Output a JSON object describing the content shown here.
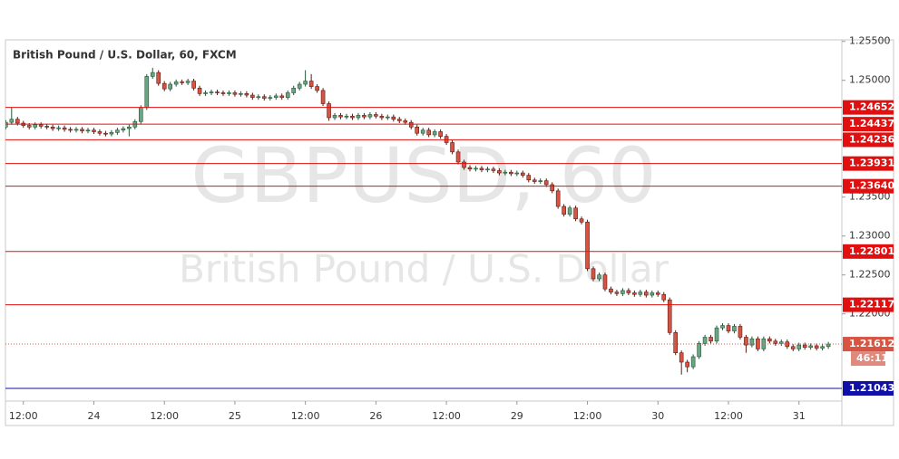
{
  "chart_data": {
    "type": "candlestick",
    "title": "British Pound / U.S. Dollar, 60, FXCM",
    "watermark": "GBPUSD, 60",
    "watermark_subtitle": "British Pound / U.S. Dollar",
    "ylim": [
      1.2088,
      1.2552
    ],
    "yticks": [
      {
        "value": 1.255,
        "label": "1.25500"
      },
      {
        "value": 1.25,
        "label": "1.25000"
      },
      {
        "value": 1.235,
        "label": "1.23500"
      },
      {
        "value": 1.23,
        "label": "1.23000"
      },
      {
        "value": 1.225,
        "label": "1.22500"
      },
      {
        "value": 1.22,
        "label": "1.22000"
      }
    ],
    "xlim": [
      -0.05,
      142.3
    ],
    "xticks": [
      {
        "value": 3,
        "label": "12:00"
      },
      {
        "value": 15,
        "label": "24"
      },
      {
        "value": 27,
        "label": "12:00"
      },
      {
        "value": 39,
        "label": "25"
      },
      {
        "value": 51,
        "label": "12:00"
      },
      {
        "value": 63,
        "label": "26"
      },
      {
        "value": 75,
        "label": "12:00"
      },
      {
        "value": 87,
        "label": "29"
      },
      {
        "value": 99,
        "label": "12:00"
      },
      {
        "value": 111,
        "label": "30"
      },
      {
        "value": 123,
        "label": "12:00"
      },
      {
        "value": 135,
        "label": "31"
      }
    ],
    "up_color": "#6ba583",
    "down_color": "#d75442",
    "levels": [
      {
        "value": 1.24652,
        "color": "#e01010"
      },
      {
        "value": 1.24437,
        "color": "#e01010"
      },
      {
        "value": 1.24236,
        "color": "#e01010"
      },
      {
        "value": 1.23931,
        "color": "#e01010"
      },
      {
        "value": 1.2364,
        "label": "1.23640",
        "color": "#e01010"
      },
      {
        "value": 1.22801,
        "color": "#e01010"
      },
      {
        "value": 1.22117,
        "color": "#e01010"
      },
      {
        "value": 1.21043,
        "color": "#1010a8"
      }
    ],
    "last_price": 1.21612,
    "countdown": "46:11",
    "ohlc": [
      [
        1.244,
        1.2449,
        1.2437,
        1.2446
      ],
      [
        1.2446,
        1.2465,
        1.2443,
        1.245
      ],
      [
        1.245,
        1.2453,
        1.2442,
        1.2445
      ],
      [
        1.2445,
        1.2448,
        1.2439,
        1.2442
      ],
      [
        1.2442,
        1.2445,
        1.2437,
        1.244
      ],
      [
        1.244,
        1.2446,
        1.2437,
        1.2443
      ],
      [
        1.2443,
        1.2446,
        1.2438,
        1.2441
      ],
      [
        1.2441,
        1.2444,
        1.2437,
        1.244
      ],
      [
        1.244,
        1.2443,
        1.2435,
        1.2438
      ],
      [
        1.2438,
        1.2442,
        1.2435,
        1.2439
      ],
      [
        1.2439,
        1.2442,
        1.2434,
        1.2437
      ],
      [
        1.2437,
        1.244,
        1.2433,
        1.2436
      ],
      [
        1.2436,
        1.244,
        1.2433,
        1.2437
      ],
      [
        1.2437,
        1.244,
        1.2432,
        1.2435
      ],
      [
        1.2435,
        1.2439,
        1.2432,
        1.2436
      ],
      [
        1.2436,
        1.2439,
        1.2431,
        1.2434
      ],
      [
        1.2434,
        1.2437,
        1.2429,
        1.2432
      ],
      [
        1.2432,
        1.2435,
        1.2428,
        1.2431
      ],
      [
        1.2431,
        1.2436,
        1.2428,
        1.2433
      ],
      [
        1.2433,
        1.2439,
        1.243,
        1.2436
      ],
      [
        1.2436,
        1.2441,
        1.2433,
        1.2438
      ],
      [
        1.2438,
        1.2443,
        1.2428,
        1.244
      ],
      [
        1.244,
        1.245,
        1.2437,
        1.2447
      ],
      [
        1.2447,
        1.2468,
        1.2444,
        1.2465
      ],
      [
        1.2465,
        1.2508,
        1.2462,
        1.2505
      ],
      [
        1.2505,
        1.2516,
        1.2502,
        1.251
      ],
      [
        1.251,
        1.2513,
        1.2493,
        1.2496
      ],
      [
        1.2496,
        1.2499,
        1.2486,
        1.2489
      ],
      [
        1.2489,
        1.2498,
        1.2486,
        1.2495
      ],
      [
        1.2495,
        1.2501,
        1.2492,
        1.2498
      ],
      [
        1.2498,
        1.2501,
        1.2494,
        1.2497
      ],
      [
        1.2497,
        1.2502,
        1.2494,
        1.2499
      ],
      [
        1.2499,
        1.2502,
        1.2487,
        1.249
      ],
      [
        1.249,
        1.2493,
        1.248,
        1.2483
      ],
      [
        1.2483,
        1.2487,
        1.248,
        1.2484
      ],
      [
        1.2484,
        1.2488,
        1.2481,
        1.2485
      ],
      [
        1.2485,
        1.2488,
        1.2481,
        1.2484
      ],
      [
        1.2484,
        1.2487,
        1.248,
        1.2483
      ],
      [
        1.2483,
        1.2487,
        1.248,
        1.2484
      ],
      [
        1.2484,
        1.2487,
        1.2479,
        1.2482
      ],
      [
        1.2482,
        1.2486,
        1.2479,
        1.2483
      ],
      [
        1.2483,
        1.2486,
        1.2478,
        1.2481
      ],
      [
        1.2481,
        1.2484,
        1.2475,
        1.2478
      ],
      [
        1.2478,
        1.2482,
        1.2475,
        1.2479
      ],
      [
        1.2479,
        1.2482,
        1.2474,
        1.2477
      ],
      [
        1.2477,
        1.2481,
        1.2474,
        1.2478
      ],
      [
        1.2478,
        1.2483,
        1.2475,
        1.248
      ],
      [
        1.248,
        1.2483,
        1.2475,
        1.2478
      ],
      [
        1.2478,
        1.2487,
        1.2475,
        1.2484
      ],
      [
        1.2484,
        1.2493,
        1.2481,
        1.249
      ],
      [
        1.249,
        1.2498,
        1.2487,
        1.2495
      ],
      [
        1.2495,
        1.2513,
        1.2492,
        1.2499
      ],
      [
        1.2499,
        1.2508,
        1.2489,
        1.2492
      ],
      [
        1.2492,
        1.2495,
        1.2484,
        1.2487
      ],
      [
        1.2487,
        1.249,
        1.2467,
        1.247
      ],
      [
        1.247,
        1.2473,
        1.2448,
        1.2452
      ],
      [
        1.2452,
        1.2458,
        1.2449,
        1.2455
      ],
      [
        1.2455,
        1.2458,
        1.245,
        1.2453
      ],
      [
        1.2453,
        1.2457,
        1.245,
        1.2454
      ],
      [
        1.2454,
        1.2457,
        1.2449,
        1.2452
      ],
      [
        1.2452,
        1.2458,
        1.2449,
        1.2455
      ],
      [
        1.2455,
        1.2458,
        1.245,
        1.2453
      ],
      [
        1.2453,
        1.2459,
        1.245,
        1.2456
      ],
      [
        1.2456,
        1.2459,
        1.2451,
        1.2454
      ],
      [
        1.2454,
        1.2457,
        1.2449,
        1.2452
      ],
      [
        1.2452,
        1.2456,
        1.2449,
        1.2453
      ],
      [
        1.2453,
        1.2456,
        1.2447,
        1.245
      ],
      [
        1.245,
        1.2453,
        1.2445,
        1.2448
      ],
      [
        1.2448,
        1.2451,
        1.2443,
        1.2446
      ],
      [
        1.2446,
        1.2449,
        1.2437,
        1.244
      ],
      [
        1.244,
        1.2443,
        1.2429,
        1.2432
      ],
      [
        1.2432,
        1.2439,
        1.2429,
        1.2436
      ],
      [
        1.2436,
        1.2439,
        1.2427,
        1.243
      ],
      [
        1.243,
        1.2437,
        1.2427,
        1.2434
      ],
      [
        1.2434,
        1.2437,
        1.2425,
        1.2428
      ],
      [
        1.2428,
        1.2431,
        1.2417,
        1.242
      ],
      [
        1.242,
        1.2423,
        1.2405,
        1.2408
      ],
      [
        1.2408,
        1.2411,
        1.2392,
        1.2395
      ],
      [
        1.2395,
        1.2398,
        1.2385,
        1.2388
      ],
      [
        1.2388,
        1.2391,
        1.2383,
        1.2386
      ],
      [
        1.2386,
        1.239,
        1.2383,
        1.2387
      ],
      [
        1.2387,
        1.239,
        1.2382,
        1.2385
      ],
      [
        1.2385,
        1.2389,
        1.2382,
        1.2386
      ],
      [
        1.2386,
        1.2389,
        1.2381,
        1.2384
      ],
      [
        1.2384,
        1.2387,
        1.2378,
        1.2381
      ],
      [
        1.2381,
        1.2385,
        1.2378,
        1.2382
      ],
      [
        1.2382,
        1.2385,
        1.2377,
        1.238
      ],
      [
        1.238,
        1.2384,
        1.2377,
        1.2381
      ],
      [
        1.2381,
        1.2384,
        1.2375,
        1.2378
      ],
      [
        1.2378,
        1.2381,
        1.2369,
        1.2372
      ],
      [
        1.2372,
        1.2375,
        1.2367,
        1.237
      ],
      [
        1.237,
        1.2374,
        1.2367,
        1.2371
      ],
      [
        1.2371,
        1.2374,
        1.2363,
        1.2366
      ],
      [
        1.2366,
        1.2369,
        1.2355,
        1.2358
      ],
      [
        1.2358,
        1.2361,
        1.2335,
        1.2338
      ],
      [
        1.2338,
        1.2341,
        1.2325,
        1.2328
      ],
      [
        1.2328,
        1.2339,
        1.2325,
        1.2336
      ],
      [
        1.2336,
        1.2339,
        1.2319,
        1.2322
      ],
      [
        1.2322,
        1.2325,
        1.2315,
        1.2318
      ],
      [
        1.2318,
        1.2321,
        1.2255,
        1.2258
      ],
      [
        1.2258,
        1.2261,
        1.2242,
        1.2245
      ],
      [
        1.2245,
        1.2253,
        1.2242,
        1.225
      ],
      [
        1.225,
        1.2253,
        1.2229,
        1.2232
      ],
      [
        1.2232,
        1.2235,
        1.2225,
        1.2228
      ],
      [
        1.2228,
        1.2231,
        1.2223,
        1.2226
      ],
      [
        1.2226,
        1.2233,
        1.2223,
        1.223
      ],
      [
        1.223,
        1.2233,
        1.2224,
        1.2227
      ],
      [
        1.2227,
        1.223,
        1.2222,
        1.2225
      ],
      [
        1.2225,
        1.2231,
        1.2222,
        1.2228
      ],
      [
        1.2228,
        1.2231,
        1.2221,
        1.2224
      ],
      [
        1.2224,
        1.223,
        1.2221,
        1.2227
      ],
      [
        1.2227,
        1.223,
        1.2222,
        1.2225
      ],
      [
        1.2225,
        1.2228,
        1.2215,
        1.2218
      ],
      [
        1.2218,
        1.2221,
        1.2173,
        1.2176
      ],
      [
        1.2176,
        1.2179,
        1.2147,
        1.215
      ],
      [
        1.215,
        1.2153,
        1.2122,
        1.2138
      ],
      [
        1.2138,
        1.2141,
        1.2125,
        1.2132
      ],
      [
        1.2132,
        1.2148,
        1.2129,
        1.2145
      ],
      [
        1.2145,
        1.2165,
        1.2142,
        1.2162
      ],
      [
        1.2162,
        1.2173,
        1.2159,
        1.217
      ],
      [
        1.217,
        1.2173,
        1.2162,
        1.2165
      ],
      [
        1.2165,
        1.2185,
        1.2162,
        1.2182
      ],
      [
        1.2182,
        1.2188,
        1.2179,
        1.2185
      ],
      [
        1.2185,
        1.2188,
        1.2175,
        1.2178
      ],
      [
        1.2178,
        1.2187,
        1.2175,
        1.2184
      ],
      [
        1.2184,
        1.2187,
        1.2167,
        1.217
      ],
      [
        1.217,
        1.2173,
        1.215,
        1.216
      ],
      [
        1.216,
        1.2171,
        1.2157,
        1.2168
      ],
      [
        1.2168,
        1.2171,
        1.2152,
        1.2155
      ],
      [
        1.2155,
        1.2171,
        1.2152,
        1.2168
      ],
      [
        1.2168,
        1.2171,
        1.2162,
        1.2165
      ],
      [
        1.2165,
        1.2168,
        1.2159,
        1.2162
      ],
      [
        1.2162,
        1.2167,
        1.2159,
        1.2164
      ],
      [
        1.2164,
        1.2167,
        1.2155,
        1.2158
      ],
      [
        1.2158,
        1.2161,
        1.2152,
        1.2155
      ],
      [
        1.2155,
        1.2163,
        1.2152,
        1.216
      ],
      [
        1.216,
        1.2163,
        1.2154,
        1.2157
      ],
      [
        1.2157,
        1.2162,
        1.2154,
        1.2159
      ],
      [
        1.2159,
        1.2162,
        1.2153,
        1.2156
      ],
      [
        1.2156,
        1.2161,
        1.2153,
        1.2158
      ],
      [
        1.2158,
        1.2164,
        1.2155,
        1.21612
      ]
    ]
  }
}
